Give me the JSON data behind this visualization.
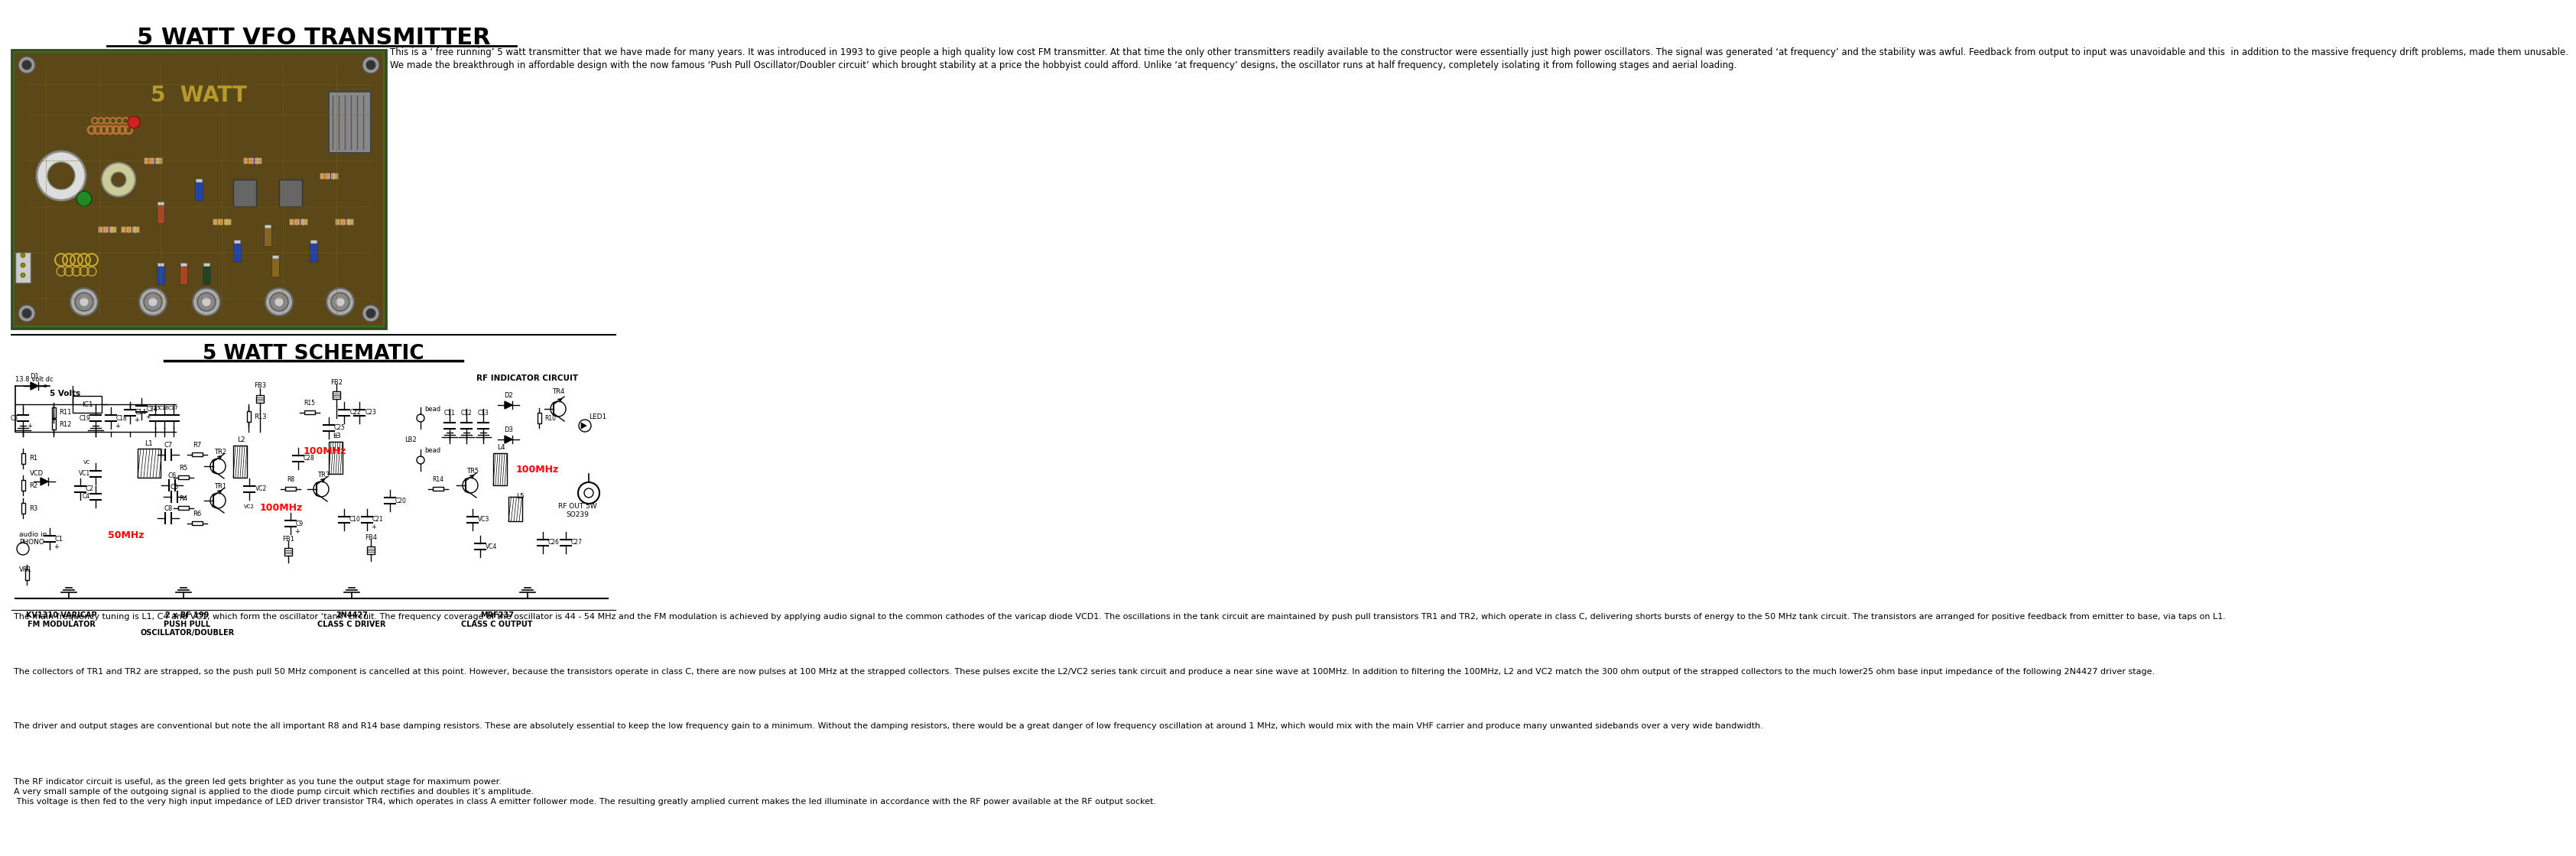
{
  "title1": "5 WATT VFO TRANSMITTER",
  "title2": "5 WATT SCHEMATIC",
  "bg_color": "#ffffff",
  "description_text": "This is a ‘ free running’ 5 watt transmitter that we have made for many years. It was introduced in 1993 to give people a high quality low cost FM transmitter. At that time the only other transmitters readily available to the constructor were essentially just high power oscillators. The signal was generated ‘at frequency’ and the stability was awful. Feedback from output to input was unavoidable and this  in addition to the massive frequency drift problems, made them unusable.\nWe made the breakthrough in affordable design with the now famous ‘Push Pull Oscillator/Doubler circuit’ which brought stability at a price the hobbyist could afford. Unlike ‘at frequency’ designs, the oscillator runs at half frequency, completely isolating it from following stages and aerial loading.",
  "body_text_para1": "The main frequency tuning is L1, C4 and VC1, which form the oscillator ‘tank’ circuit. The frequency coverage of the oscillator is 44 - 54 MHz and the FM modulation is achieved by applying audio signal to the common cathodes of the varicap diode VCD1. The oscillations in the tank circuit are maintained by push pull transistors TR1 and TR2, which operate in class C, delivering shorts bursts of energy to the 50 MHz tank circuit. The transistors are arranged for positive feedback from emitter to base, via taps on L1.",
  "body_text_para2": "The collectors of TR1 and TR2 are strapped, so the push pull 50 MHz component is cancelled at this point. However, because the transistors operate in class C, there are now pulses at 100 MHz at the strapped collectors. These pulses excite the L2/VC2 series tank circuit and produce a near sine wave at 100MHz. In addition to filtering the 100MHz, L2 and VC2 match the 300 ohm output of the strapped collectors to the much lower25 ohm base input impedance of the following 2N4427 driver stage.",
  "body_text_para3": "The driver and output stages are conventional but note the all important R8 and R14 base damping resistors. These are absolutely essential to keep the low frequency gain to a minimum. Without the damping resistors, there would be a great danger of low frequency oscillation at around 1 MHz, which would mix with the main VHF carrier and produce many unwanted sidebands over a very wide bandwidth.",
  "body_text_para4": "The RF indicator circuit is useful, as the green led gets brighter as you tune the output stage for maximum power.\nA very small sample of the outgoing signal is applied to the diode pump circuit which rectifies and doubles it’s amplitude.\n This voltage is then fed to the very high input impedance of LED driver transistor TR4, which operates in class A emitter follower mode. The resulting greatly amplied current makes the led illuminate in accordance with the RF power available at the RF output socket.",
  "schematic_labels": {
    "top_right": "RF INDICATOR CIRCUIT",
    "kv1310": "KV1310 VARICAP\nFM MODULATOR",
    "bf199": "2 x BF 199\nPUSH PULL\nOSCILLATOR/DOUBLER",
    "2n4427": "2N4427\nCLASS C DRIVER",
    "mrf237": "MRF237\nCLASS C OUTPUT",
    "freq1": "50MHz",
    "freq2": "100MHz",
    "freq3": "100MHz",
    "freq4": "100MHz",
    "voltage": "13.8 volt dc",
    "v5": "5 Volts",
    "rf_out": "RF OUT 5W\nSO239"
  },
  "pcb_color_dark": "#4a3a10",
  "pcb_color_mid": "#6a5520",
  "pcb_color_light": "#8a7030",
  "pcb_border": "#2a4a20"
}
